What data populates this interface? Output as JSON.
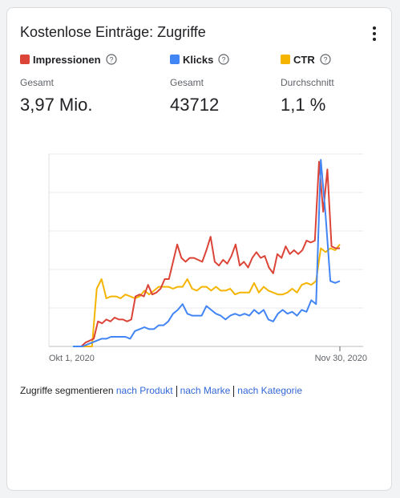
{
  "card": {
    "title": "Kostenlose Einträge: Zugriffe",
    "menu_icon": "more-vert-icon"
  },
  "metrics": [
    {
      "name": "Impressionen",
      "color": "#db4437",
      "sub_label": "Gesamt",
      "value": "3,97 Mio.",
      "help_icon": "help-circle-icon"
    },
    {
      "name": "Klicks",
      "color": "#4285f4",
      "sub_label": "Gesamt",
      "value": "43712",
      "help_icon": "help-circle-icon"
    },
    {
      "name": "CTR",
      "color": "#f4b400",
      "sub_label": "Durchschnitt",
      "value": "1,1 %",
      "help_icon": "help-circle-icon"
    }
  ],
  "chart_data": {
    "type": "line",
    "x_start": "Okt 1, 2020",
    "x_end": "Nov 30, 2020",
    "xlabel": "",
    "ylabel": "",
    "ylim": [
      0,
      5
    ],
    "grid": true,
    "y_tick_labels": [],
    "series": [
      {
        "name": "Impressionen",
        "color": "#db4437",
        "values": [
          0,
          0,
          0,
          0.1,
          0.15,
          0.2,
          0.65,
          0.6,
          0.7,
          0.65,
          0.75,
          0.7,
          0.7,
          0.65,
          0.7,
          1.3,
          1.35,
          1.3,
          1.6,
          1.35,
          1.4,
          1.5,
          1.75,
          1.75,
          2.2,
          2.65,
          2.3,
          2.2,
          2.3,
          2.3,
          2.25,
          2.2,
          2.5,
          2.85,
          2.2,
          2.1,
          2.25,
          2.15,
          2.35,
          2.65,
          2.1,
          2.2,
          2.05,
          2.3,
          2.45,
          2.3,
          2.35,
          2.05,
          1.9,
          2.4,
          2.3,
          2.6,
          2.4,
          2.5,
          2.4,
          2.5,
          2.75,
          2.7,
          2.75,
          4.8,
          3.5,
          4.6,
          2.6,
          2.55,
          2.55
        ]
      },
      {
        "name": "Klicks",
        "color": "#4285f4",
        "values": [
          0,
          0,
          0,
          0.05,
          0.1,
          0.15,
          0.2,
          0.2,
          0.25,
          0.25,
          0.25,
          0.25,
          0.2,
          0.4,
          0.45,
          0.5,
          0.45,
          0.45,
          0.55,
          0.55,
          0.65,
          0.85,
          0.95,
          1.1,
          0.85,
          0.8,
          0.8,
          0.8,
          1.05,
          0.95,
          0.85,
          0.8,
          0.7,
          0.8,
          0.85,
          0.8,
          0.85,
          0.8,
          0.95,
          0.85,
          0.95,
          0.7,
          0.65,
          0.85,
          0.95,
          0.85,
          0.9,
          0.8,
          0.95,
          0.9,
          1.2,
          1.1,
          4.85,
          3.4,
          1.7,
          1.65,
          1.7
        ]
      },
      {
        "name": "CTR",
        "color": "#f4b400",
        "values": [
          0,
          0,
          0,
          0,
          0,
          1.5,
          1.75,
          1.25,
          1.3,
          1.3,
          1.25,
          1.35,
          1.3,
          1.25,
          1.3,
          1.45,
          1.35,
          1.45,
          1.55,
          1.55,
          1.55,
          1.5,
          1.55,
          1.55,
          1.75,
          1.5,
          1.45,
          1.55,
          1.55,
          1.45,
          1.55,
          1.45,
          1.45,
          1.5,
          1.35,
          1.4,
          1.4,
          1.4,
          1.65,
          1.4,
          1.55,
          1.45,
          1.4,
          1.35,
          1.35,
          1.4,
          1.5,
          1.4,
          1.6,
          1.65,
          1.6,
          1.7,
          2.55,
          2.45,
          2.55,
          2.5,
          2.65
        ]
      }
    ]
  },
  "segment": {
    "label": "Zugriffe segmentieren",
    "links": [
      "nach Produkt",
      "nach Marke",
      "nach Kategorie"
    ]
  }
}
